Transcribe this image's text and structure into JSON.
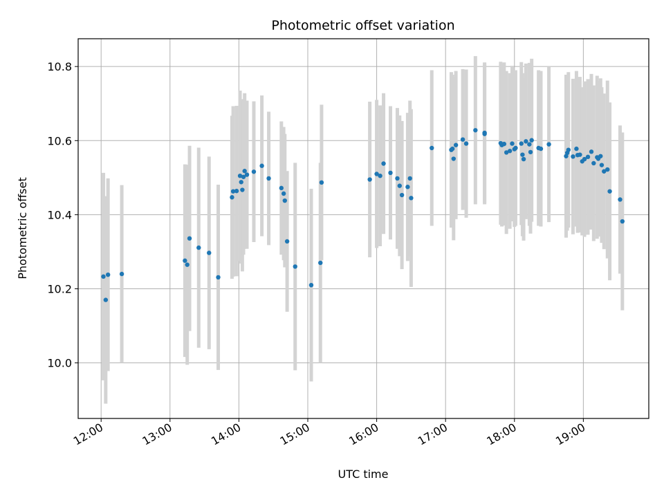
{
  "chart_data": {
    "type": "scatter",
    "title": "Photometric offset variation",
    "xlabel": "UTC time",
    "ylabel": "Photometric offset",
    "x_ticks": [
      "12:00",
      "13:00",
      "14:00",
      "15:00",
      "16:00",
      "17:00",
      "18:00",
      "19:00"
    ],
    "y_ticks": [
      "10.0",
      "10.2",
      "10.4",
      "10.6",
      "10.8"
    ],
    "xlim": [
      "11:40",
      "19:57"
    ],
    "ylim": [
      9.85,
      10.875
    ],
    "grid": true,
    "point_color": "#1f77b4",
    "errorbar_color": "#d3d3d3",
    "series": [
      {
        "x": [
          "12:02",
          "12:04",
          "12:06",
          "12:18",
          "13:13",
          "13:15",
          "13:17",
          "13:25",
          "13:34",
          "13:42",
          "13:54",
          "13:55",
          "13:58",
          "14:01",
          "14:02",
          "14:03",
          "14:04",
          "14:05",
          "14:07",
          "14:13",
          "14:20",
          "14:26",
          "14:37",
          "14:39",
          "14:40",
          "14:42",
          "14:49",
          "15:03",
          "15:11",
          "15:12",
          "15:54",
          "16:00",
          "16:03",
          "16:06",
          "16:12",
          "16:18",
          "16:20",
          "16:22",
          "16:27",
          "16:29",
          "16:30",
          "16:48",
          "17:05",
          "17:06",
          "17:07",
          "17:09",
          "17:15",
          "17:18",
          "17:26",
          "17:34",
          "17:34",
          "17:48",
          "17:49",
          "17:51",
          "17:53",
          "17:56",
          "17:58",
          "18:00",
          "18:01",
          "18:06",
          "18:07",
          "18:08",
          "18:10",
          "18:13",
          "18:14",
          "18:15",
          "18:21",
          "18:23",
          "18:30",
          "18:45",
          "18:46",
          "18:47",
          "18:51",
          "18:54",
          "18:55",
          "18:57",
          "18:59",
          "19:01",
          "19:04",
          "19:07",
          "19:09",
          "19:12",
          "19:13",
          "19:15",
          "19:16",
          "19:18",
          "19:21",
          "19:23",
          "19:32",
          "19:34"
        ],
        "y": [
          10.233,
          10.17,
          10.238,
          10.24,
          10.276,
          10.265,
          10.336,
          10.311,
          10.297,
          10.231,
          10.447,
          10.463,
          10.464,
          10.505,
          10.488,
          10.467,
          10.502,
          10.518,
          10.508,
          10.516,
          10.532,
          10.498,
          10.472,
          10.457,
          10.438,
          10.328,
          10.26,
          10.21,
          10.27,
          10.487,
          10.495,
          10.51,
          10.505,
          10.538,
          10.513,
          10.498,
          10.478,
          10.453,
          10.475,
          10.498,
          10.445,
          10.58,
          10.575,
          10.578,
          10.551,
          10.588,
          10.603,
          10.592,
          10.628,
          10.618,
          10.621,
          10.593,
          10.588,
          10.591,
          10.568,
          10.572,
          10.592,
          10.577,
          10.58,
          10.592,
          10.562,
          10.55,
          10.598,
          10.59,
          10.569,
          10.601,
          10.58,
          10.578,
          10.59,
          10.558,
          10.567,
          10.575,
          10.557,
          10.578,
          10.561,
          10.562,
          10.544,
          10.55,
          10.556,
          10.57,
          10.539,
          10.555,
          10.551,
          10.558,
          10.534,
          10.517,
          10.522,
          10.463,
          10.441,
          10.382
        ],
        "err": [
          0.28,
          0.28,
          0.26,
          0.24,
          0.26,
          0.27,
          0.25,
          0.27,
          0.26,
          0.25,
          0.22,
          0.23,
          0.23,
          0.23,
          0.22,
          0.22,
          0.21,
          0.21,
          0.2,
          0.19,
          0.19,
          0.18,
          0.18,
          0.18,
          0.18,
          0.19,
          0.28,
          0.26,
          0.27,
          0.21,
          0.21,
          0.2,
          0.19,
          0.19,
          0.18,
          0.19,
          0.19,
          0.2,
          0.2,
          0.21,
          0.24,
          0.21,
          0.21,
          0.2,
          0.22,
          0.2,
          0.19,
          0.2,
          0.2,
          0.19,
          0.19,
          0.22,
          0.22,
          0.22,
          0.22,
          0.21,
          0.21,
          0.21,
          0.21,
          0.22,
          0.22,
          0.22,
          0.21,
          0.22,
          0.22,
          0.22,
          0.21,
          0.21,
          0.21,
          0.22,
          0.21,
          0.21,
          0.21,
          0.21,
          0.21,
          0.21,
          0.2,
          0.21,
          0.21,
          0.21,
          0.21,
          0.22,
          0.21,
          0.21,
          0.21,
          0.21,
          0.24,
          0.24,
          0.2,
          0.24
        ]
      }
    ]
  }
}
